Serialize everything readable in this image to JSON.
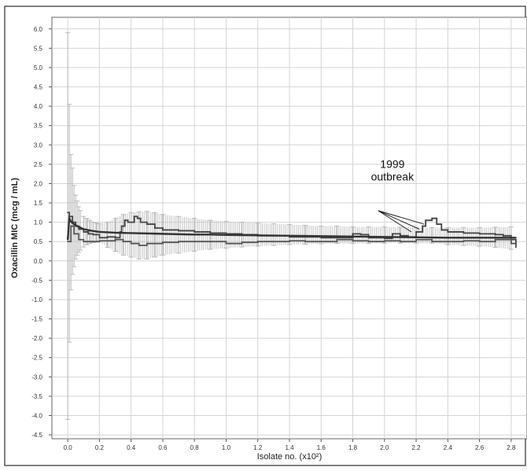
{
  "chart_data": {
    "type": "line",
    "title": "",
    "xlabel": "Isolate no. (x10²)",
    "ylabel": "Oxacillin MIC (mcg / mL)",
    "xlim": [
      -0.1,
      2.9
    ],
    "ylim": [
      -4.6,
      6.3
    ],
    "x_ticks": [
      "0.0",
      "0.2",
      "0.4",
      "0.6",
      "0.8",
      "1.0",
      "1.2",
      "1.4",
      "1.6",
      "1.8",
      "2.0",
      "2.2",
      "2.4",
      "2.6",
      "2.8"
    ],
    "y_ticks": [
      "6.0",
      "5.5",
      "5.0",
      "4.5",
      "4.0",
      "3.5",
      "3.0",
      "2.5",
      "2.0",
      "1.5",
      "1.0",
      "0.5",
      "0.0",
      "-0.5",
      "-1.0",
      "-1.5",
      "-2.0",
      "-2.5",
      "-3.0",
      "-3.5",
      "-4.0",
      "-4.5"
    ],
    "grid": true,
    "annotation": {
      "lines": [
        "1999",
        "outbreak"
      ],
      "text_x": 2.05,
      "text_y": 2.0,
      "arrow_origin": [
        1.96,
        1.3
      ],
      "arrow_targets": [
        [
          2.17,
          0.75
        ],
        [
          2.22,
          0.82
        ],
        [
          2.25,
          0.95
        ]
      ]
    },
    "series": [
      {
        "style": "step",
        "color": "#444444",
        "x": [
          0.0,
          0.01,
          0.03,
          0.05,
          0.07,
          0.1,
          0.13,
          0.16,
          0.2,
          0.25,
          0.3,
          0.33,
          0.34,
          0.36,
          0.38,
          0.42,
          0.44,
          0.46,
          0.5,
          0.55,
          0.6,
          0.7,
          0.8,
          0.9,
          1.0,
          1.1,
          1.2,
          1.3,
          1.4,
          1.5,
          1.6,
          1.7,
          1.8,
          1.85,
          1.9,
          1.95,
          2.0,
          2.05,
          2.1,
          2.15,
          2.2,
          2.24,
          2.26,
          2.3,
          2.33,
          2.36,
          2.4,
          2.5,
          2.6,
          2.7,
          2.75,
          2.8,
          2.83
        ],
        "y": [
          1.25,
          1.15,
          1.0,
          0.9,
          0.82,
          0.75,
          0.7,
          0.68,
          0.6,
          0.62,
          0.6,
          0.75,
          0.9,
          1.05,
          1.0,
          1.15,
          1.1,
          1.0,
          0.95,
          0.85,
          0.8,
          0.78,
          0.75,
          0.72,
          0.7,
          0.68,
          0.65,
          0.65,
          0.62,
          0.62,
          0.6,
          0.6,
          0.7,
          0.68,
          0.6,
          0.6,
          0.58,
          0.7,
          0.65,
          0.62,
          0.75,
          0.9,
          1.05,
          1.1,
          0.95,
          0.8,
          0.75,
          0.72,
          0.7,
          0.68,
          0.65,
          0.55,
          0.4
        ]
      },
      {
        "style": "step",
        "color": "#555555",
        "x": [
          0.0,
          0.02,
          0.04,
          0.07,
          0.1,
          0.15,
          0.2,
          0.3,
          0.35,
          0.4,
          0.45,
          0.5,
          0.6,
          0.7,
          0.8,
          0.9,
          1.0,
          1.1,
          1.2,
          1.3,
          1.4,
          1.5,
          1.6,
          1.7,
          1.8,
          1.9,
          2.0,
          2.1,
          2.2,
          2.3,
          2.4,
          2.5,
          2.6,
          2.7,
          2.8,
          2.83
        ],
        "y": [
          0.5,
          0.9,
          0.7,
          0.55,
          0.5,
          0.5,
          0.52,
          0.55,
          0.5,
          0.45,
          0.4,
          0.45,
          0.48,
          0.5,
          0.5,
          0.5,
          0.45,
          0.48,
          0.5,
          0.5,
          0.52,
          0.5,
          0.5,
          0.55,
          0.52,
          0.5,
          0.52,
          0.5,
          0.55,
          0.5,
          0.5,
          0.52,
          0.5,
          0.55,
          0.45,
          0.35
        ]
      },
      {
        "style": "mean",
        "color": "#333333",
        "x": [
          0.0,
          0.01,
          0.02,
          0.03,
          0.05,
          0.08,
          0.1,
          0.15,
          0.2,
          0.3,
          0.4,
          0.5,
          0.6,
          0.7,
          0.8,
          0.9,
          1.0,
          1.2,
          1.4,
          1.6,
          1.8,
          2.0,
          2.2,
          2.4,
          2.6,
          2.8,
          2.83
        ],
        "y": [
          0.55,
          1.1,
          1.02,
          0.98,
          0.92,
          0.86,
          0.82,
          0.78,
          0.75,
          0.73,
          0.72,
          0.71,
          0.7,
          0.69,
          0.68,
          0.68,
          0.67,
          0.66,
          0.65,
          0.64,
          0.63,
          0.62,
          0.61,
          0.6,
          0.6,
          0.6,
          0.6
        ]
      }
    ],
    "error_bars": {
      "color": "#b8b8b8",
      "x": [
        0.0,
        0.01,
        0.02,
        0.03,
        0.04,
        0.05,
        0.06,
        0.07,
        0.08,
        0.1,
        0.12,
        0.14,
        0.16,
        0.18,
        0.2,
        0.25,
        0.3,
        0.35,
        0.4,
        0.45,
        0.5,
        0.55,
        0.6,
        0.7,
        0.8,
        0.9,
        1.0,
        1.1,
        1.2,
        1.3,
        1.4,
        1.5,
        1.6,
        1.7,
        1.8,
        1.9,
        2.0,
        2.1,
        2.2,
        2.3,
        2.4,
        2.5,
        2.6,
        2.7,
        2.8
      ],
      "low": [
        -4.1,
        -2.1,
        -0.75,
        -0.35,
        -0.15,
        0.05,
        0.15,
        0.22,
        0.28,
        0.36,
        0.42,
        0.45,
        0.47,
        0.49,
        0.5,
        0.35,
        0.25,
        0.15,
        0.1,
        0.05,
        0.05,
        0.1,
        0.15,
        0.2,
        0.25,
        0.3,
        0.33,
        0.36,
        0.38,
        0.4,
        0.42,
        0.43,
        0.44,
        0.45,
        0.45,
        0.45,
        0.46,
        0.46,
        0.46,
        0.46,
        0.42,
        0.4,
        0.38,
        0.35,
        0.3
      ],
      "high": [
        5.9,
        4.05,
        2.75,
        2.4,
        1.95,
        1.7,
        1.55,
        1.4,
        1.3,
        1.15,
        1.1,
        1.05,
        1.0,
        0.98,
        0.96,
        1.0,
        1.1,
        1.2,
        1.25,
        1.27,
        1.28,
        1.25,
        1.2,
        1.15,
        1.1,
        1.05,
        1.02,
        1.0,
        0.98,
        0.96,
        0.94,
        0.92,
        0.9,
        0.9,
        0.88,
        0.88,
        0.88,
        0.87,
        0.87,
        0.86,
        0.86,
        0.86,
        0.86,
        0.87,
        0.88
      ]
    }
  }
}
